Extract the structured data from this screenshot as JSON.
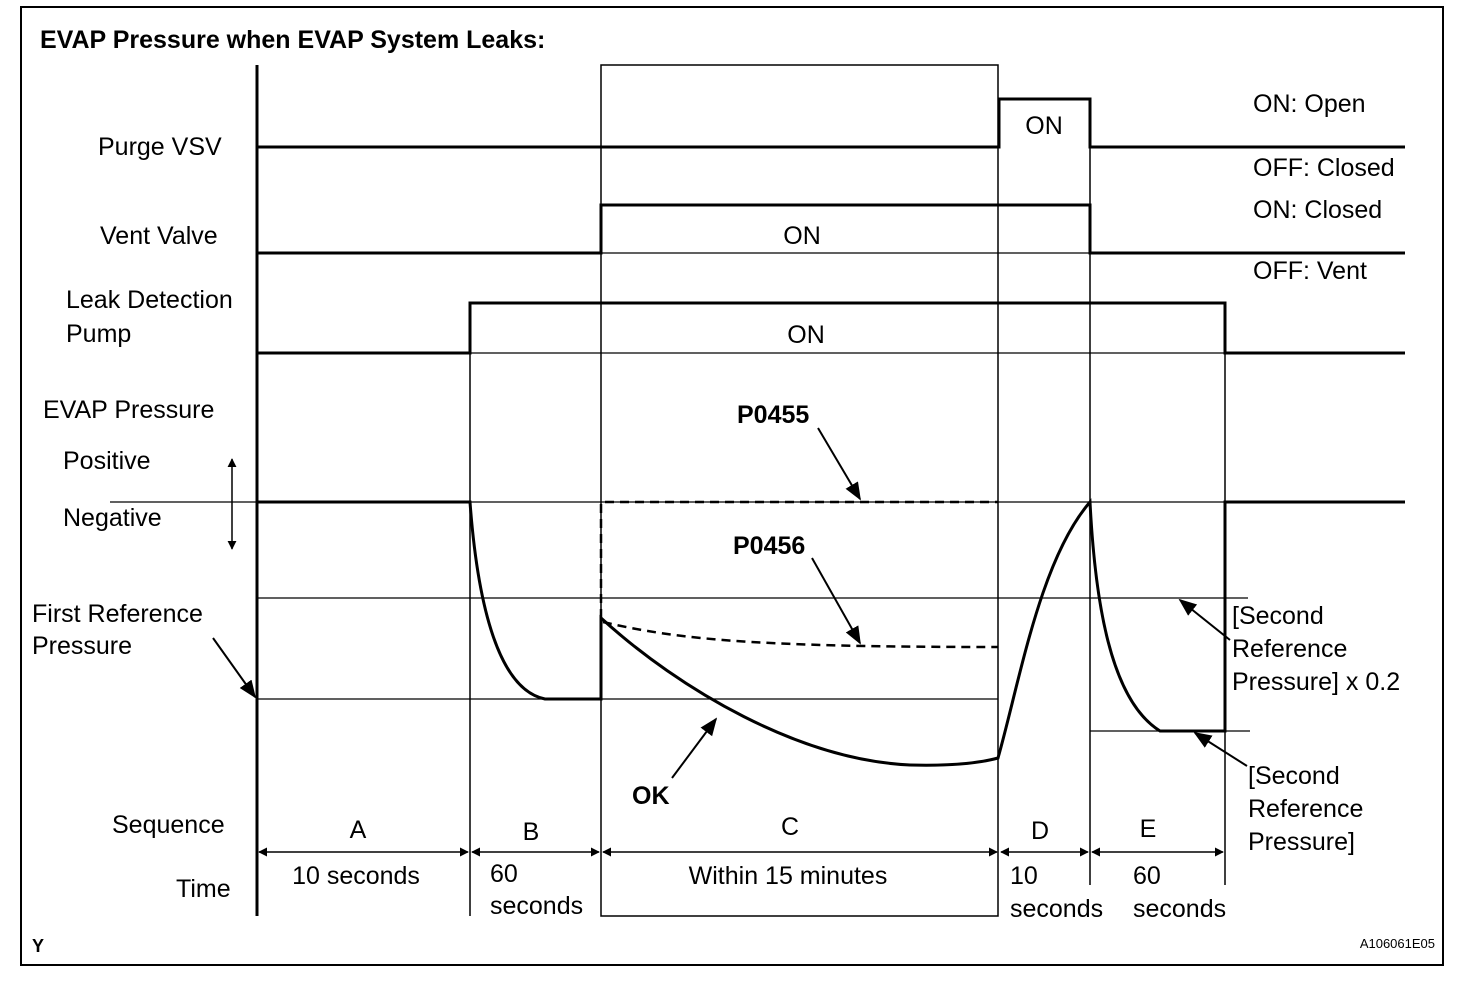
{
  "title": "EVAP Pressure when EVAP System Leaks:",
  "row_labels": {
    "purge_vsv": "Purge VSV",
    "vent_valve": "Vent Valve",
    "leak_pump_1": "Leak Detection",
    "leak_pump_2": "Pump",
    "evap_pressure": "EVAP Pressure",
    "positive": "Positive",
    "negative": "Negative",
    "first_ref_1": "First Reference",
    "first_ref_2": "Pressure",
    "sequence": "Sequence",
    "time": "Time"
  },
  "state_labels": {
    "purge_on": "ON",
    "vent_on": "ON",
    "pump_on": "ON"
  },
  "legend": {
    "purge_on": "ON: Open",
    "purge_off": "OFF: Closed",
    "vent_on": "ON: Closed",
    "vent_off": "OFF: Vent"
  },
  "curve_labels": {
    "p0455": "P0455",
    "p0456": "P0456",
    "ok": "OK"
  },
  "annotations": {
    "second_ref_x02_1": "[Second",
    "second_ref_x02_2": "Reference",
    "second_ref_x02_3": "Pressure] x 0.2",
    "second_ref_1": "[Second",
    "second_ref_2": "Reference",
    "second_ref_3": "Pressure]"
  },
  "sequences": [
    {
      "letter": "A",
      "time_1": "10 seconds",
      "time_2": ""
    },
    {
      "letter": "B",
      "time_1": "60",
      "time_2": "seconds"
    },
    {
      "letter": "C",
      "time_1": "Within 15 minutes",
      "time_2": ""
    },
    {
      "letter": "D",
      "time_1": "10",
      "time_2": "seconds"
    },
    {
      "letter": "E",
      "time_1": "60",
      "time_2": "seconds"
    }
  ],
  "corner_left": "Y",
  "corner_right": "A106061E05"
}
